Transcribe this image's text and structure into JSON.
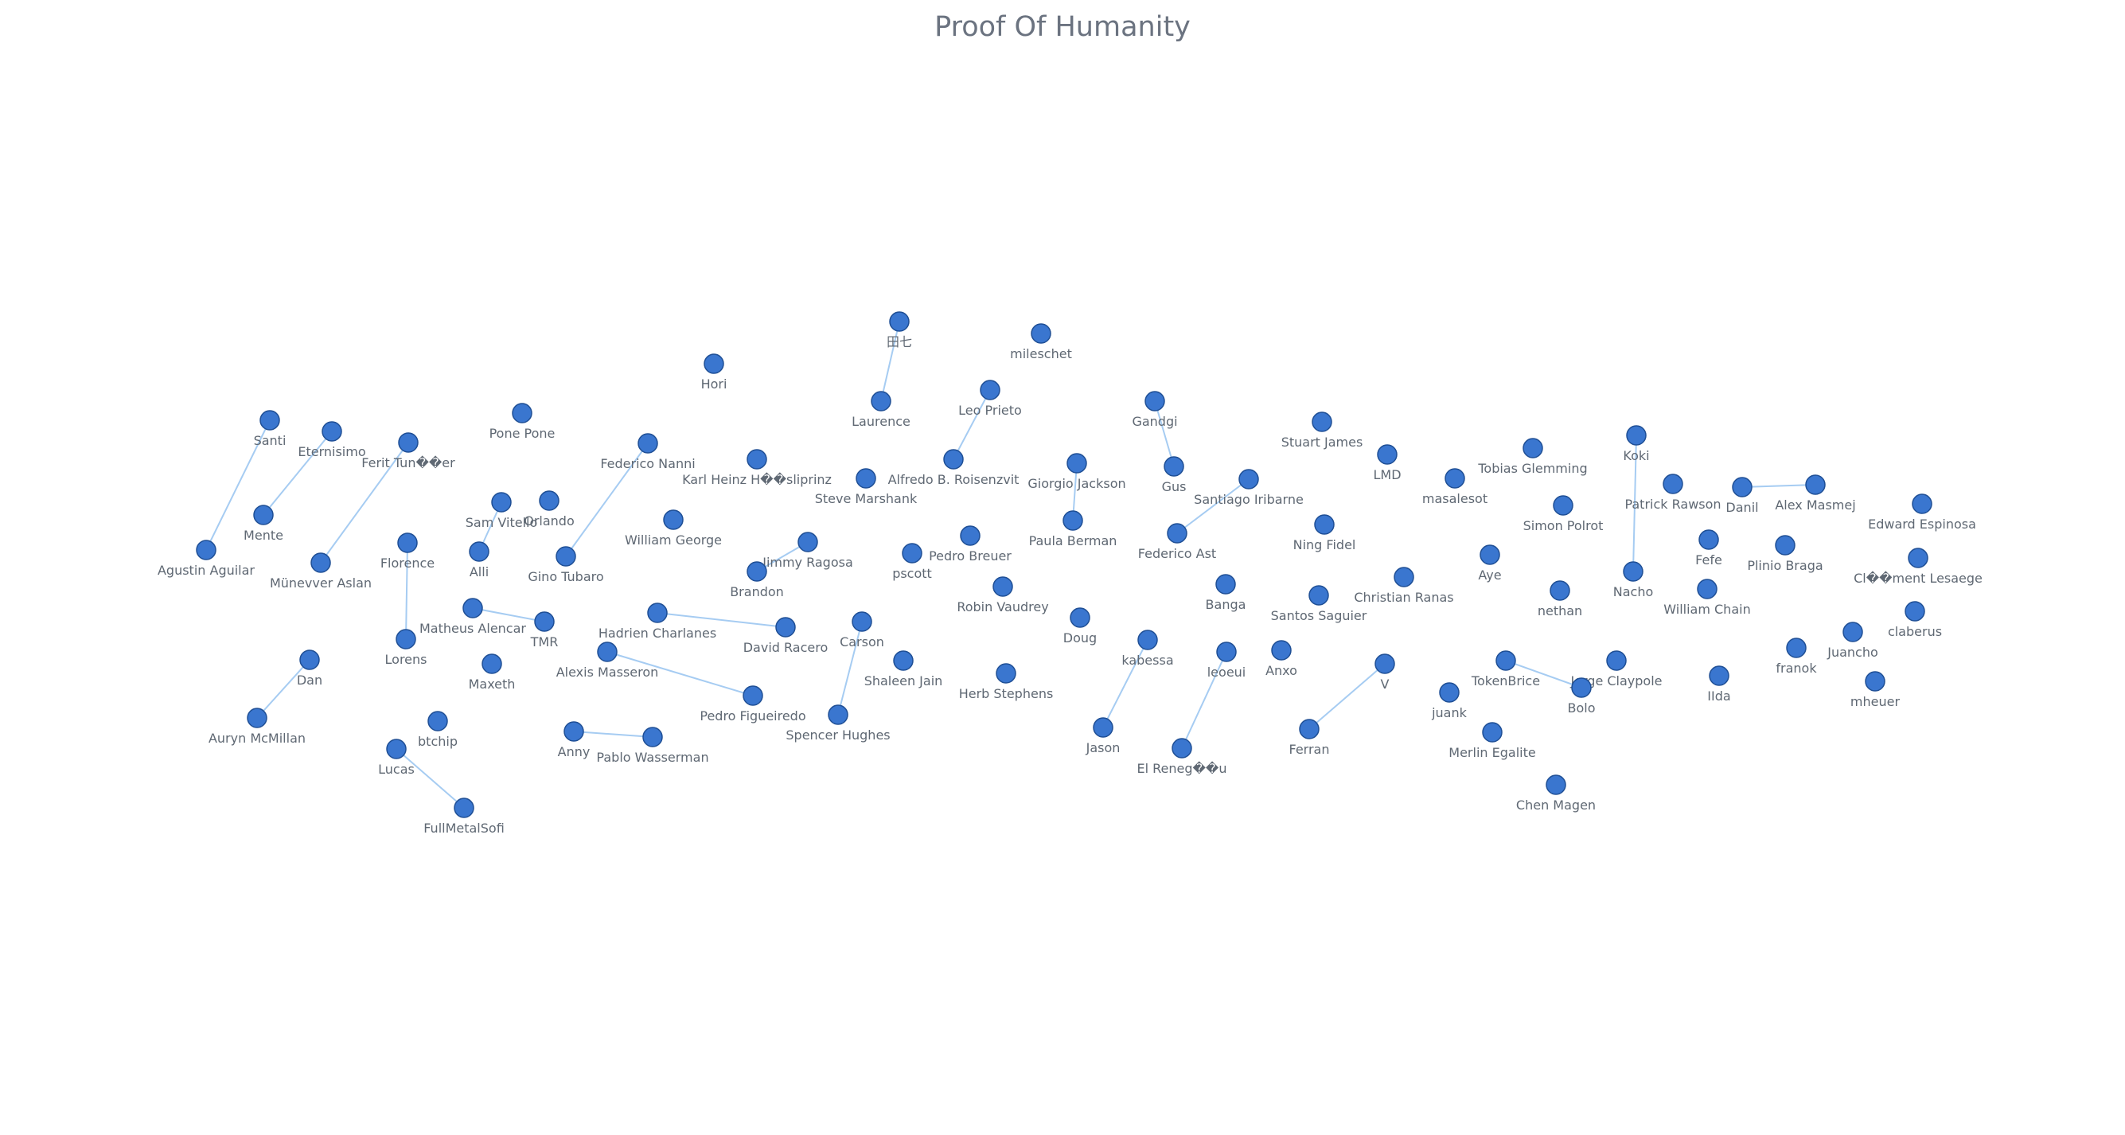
{
  "title": "Proof Of Humanity",
  "colors": {
    "node_fill": "#3a76cf",
    "node_stroke": "#1f4f95",
    "edge": "#a6ccf2",
    "label": "#5f6873"
  },
  "nodes": [
    {
      "id": "n01",
      "label": "田七"
    },
    {
      "id": "n02",
      "label": "mileschet"
    },
    {
      "id": "n03",
      "label": "Hori"
    },
    {
      "id": "n04",
      "label": "Laurence"
    },
    {
      "id": "n05",
      "label": "Leo Prieto"
    },
    {
      "id": "n06",
      "label": "Gandgi"
    },
    {
      "id": "n07",
      "label": "Santi"
    },
    {
      "id": "n08",
      "label": "Eternisimo"
    },
    {
      "id": "n09",
      "label": "Pone Pone"
    },
    {
      "id": "n10",
      "label": "Ferit Tun��er"
    },
    {
      "id": "n11",
      "label": "Federico Nanni"
    },
    {
      "id": "n12",
      "label": "Karl Heinz H��sliprinz"
    },
    {
      "id": "n13",
      "label": "Alfredo B. Roisenzvit"
    },
    {
      "id": "n14",
      "label": "Giorgio Jackson"
    },
    {
      "id": "n15",
      "label": "Gus"
    },
    {
      "id": "n16",
      "label": "Stuart James"
    },
    {
      "id": "n17",
      "label": "LMD"
    },
    {
      "id": "n18",
      "label": "Tobias Glemming"
    },
    {
      "id": "n19",
      "label": "Koki"
    },
    {
      "id": "n20",
      "label": "Steve Marshank"
    },
    {
      "id": "n21",
      "label": "Santiago Iribarne"
    },
    {
      "id": "n22",
      "label": "masalesot"
    },
    {
      "id": "n23",
      "label": "Patrick Rawson"
    },
    {
      "id": "n24",
      "label": "Danil"
    },
    {
      "id": "n25",
      "label": "Alex Masmej"
    },
    {
      "id": "n26",
      "label": "Sam Vitello"
    },
    {
      "id": "n27",
      "label": "Orlando"
    },
    {
      "id": "n28",
      "label": "Mente"
    },
    {
      "id": "n29",
      "label": "William George"
    },
    {
      "id": "n30",
      "label": "Simon Polrot"
    },
    {
      "id": "n31",
      "label": "Edward Espinosa"
    },
    {
      "id": "n32",
      "label": "Paula Berman"
    },
    {
      "id": "n33",
      "label": "Ning Fidel"
    },
    {
      "id": "n34",
      "label": "Federico Ast"
    },
    {
      "id": "n35",
      "label": "Pedro Breuer"
    },
    {
      "id": "n36",
      "label": "Jimmy Ragosa"
    },
    {
      "id": "n37",
      "label": "Agustin Aguilar"
    },
    {
      "id": "n38",
      "label": "Florence"
    },
    {
      "id": "n39",
      "label": "Alli"
    },
    {
      "id": "n40",
      "label": "Gino Tubaro"
    },
    {
      "id": "n41",
      "label": "pscott"
    },
    {
      "id": "n42",
      "label": "Fefe"
    },
    {
      "id": "n43",
      "label": "Plinio Braga"
    },
    {
      "id": "n44",
      "label": "Aye"
    },
    {
      "id": "n45",
      "label": "Münevver Aslan"
    },
    {
      "id": "n46",
      "label": "Brandon"
    },
    {
      "id": "n47",
      "label": "Cl��ment Lesaege"
    },
    {
      "id": "n48",
      "label": "Nacho"
    },
    {
      "id": "n49",
      "label": "Christian Ranas"
    },
    {
      "id": "n50",
      "label": "Banga"
    },
    {
      "id": "n51",
      "label": "Robin Vaudrey"
    },
    {
      "id": "n52",
      "label": "nethan"
    },
    {
      "id": "n53",
      "label": "William Chain"
    },
    {
      "id": "n54",
      "label": "Santos Saguier"
    },
    {
      "id": "n55",
      "label": "Matheus Alencar"
    },
    {
      "id": "n56",
      "label": "Hadrien Charlanes"
    },
    {
      "id": "n57",
      "label": "claberus"
    },
    {
      "id": "n58",
      "label": "TMR"
    },
    {
      "id": "n59",
      "label": "Doug"
    },
    {
      "id": "n60",
      "label": "Carson"
    },
    {
      "id": "n61",
      "label": "David Racero"
    },
    {
      "id": "n62",
      "label": "Juancho"
    },
    {
      "id": "n63",
      "label": "Lorens"
    },
    {
      "id": "n64",
      "label": "kabessa"
    },
    {
      "id": "n65",
      "label": "franok"
    },
    {
      "id": "n66",
      "label": "Alexis Masseron"
    },
    {
      "id": "n67",
      "label": "leoeui"
    },
    {
      "id": "n68",
      "label": "Anxo"
    },
    {
      "id": "n69",
      "label": "Dan"
    },
    {
      "id": "n70",
      "label": "Shaleen Jain"
    },
    {
      "id": "n71",
      "label": "TokenBrice"
    },
    {
      "id": "n72",
      "label": "Jorge Claypole"
    },
    {
      "id": "n73",
      "label": "Maxeth"
    },
    {
      "id": "n74",
      "label": "V"
    },
    {
      "id": "n75",
      "label": "Herb Stephens"
    },
    {
      "id": "n76",
      "label": "IIda"
    },
    {
      "id": "n77",
      "label": "mheuer"
    },
    {
      "id": "n78",
      "label": "Bolo"
    },
    {
      "id": "n79",
      "label": "Pedro Figueiredo"
    },
    {
      "id": "n80",
      "label": "juank"
    },
    {
      "id": "n81",
      "label": "Spencer Hughes"
    },
    {
      "id": "n82",
      "label": "Auryn McMillan"
    },
    {
      "id": "n83",
      "label": "btchip"
    },
    {
      "id": "n84",
      "label": "Jason"
    },
    {
      "id": "n85",
      "label": "Ferran"
    },
    {
      "id": "n86",
      "label": "Anny"
    },
    {
      "id": "n87",
      "label": "Merlin Egalite"
    },
    {
      "id": "n88",
      "label": "Pablo Wasserman"
    },
    {
      "id": "n89",
      "label": "Lucas"
    },
    {
      "id": "n90",
      "label": "El Reneg��u"
    },
    {
      "id": "n91",
      "label": "Chen Magen"
    },
    {
      "id": "n92",
      "label": "FullMetalSofi"
    }
  ],
  "edges": [
    [
      "n01",
      "n04"
    ],
    [
      "n05",
      "n13"
    ],
    [
      "n06",
      "n15"
    ],
    [
      "n07",
      "n37"
    ],
    [
      "n08",
      "n28"
    ],
    [
      "n10",
      "n45"
    ],
    [
      "n11",
      "n40"
    ],
    [
      "n26",
      "n39"
    ],
    [
      "n14",
      "n32"
    ],
    [
      "n21",
      "n34"
    ],
    [
      "n19",
      "n48"
    ],
    [
      "n24",
      "n25"
    ],
    [
      "n36",
      "n46"
    ],
    [
      "n38",
      "n63"
    ],
    [
      "n55",
      "n58"
    ],
    [
      "n56",
      "n61"
    ],
    [
      "n60",
      "n81"
    ],
    [
      "n66",
      "n79"
    ],
    [
      "n69",
      "n82"
    ],
    [
      "n64",
      "n84"
    ],
    [
      "n67",
      "n90"
    ],
    [
      "n74",
      "n85"
    ],
    [
      "n71",
      "n78"
    ],
    [
      "n86",
      "n88"
    ],
    [
      "n89",
      "n92"
    ]
  ]
}
